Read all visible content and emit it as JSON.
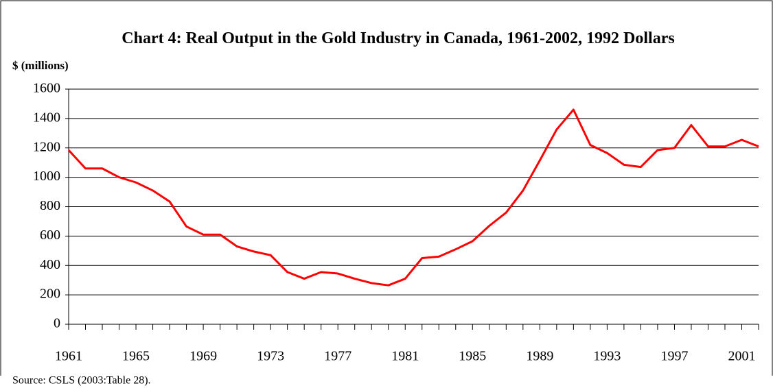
{
  "chart_data": {
    "type": "line",
    "title": "Chart 4: Real Output in the Gold Industry in Canada, 1961-2002, 1992 Dollars",
    "y_axis_label": "$ (millions)",
    "source": "Source: CSLS (2003:Table 28).",
    "x": [
      1961,
      1962,
      1963,
      1964,
      1965,
      1966,
      1967,
      1968,
      1969,
      1970,
      1971,
      1972,
      1973,
      1974,
      1975,
      1976,
      1977,
      1978,
      1979,
      1980,
      1981,
      1982,
      1983,
      1984,
      1985,
      1986,
      1987,
      1988,
      1989,
      1990,
      1991,
      1992,
      1993,
      1994,
      1995,
      1996,
      1997,
      1998,
      1999,
      2000,
      2001,
      2002
    ],
    "series": [
      {
        "color": "#ff0000",
        "values": [
          1185,
          1060,
          1060,
          1000,
          965,
          910,
          835,
          665,
          610,
          610,
          530,
          495,
          470,
          355,
          310,
          355,
          345,
          310,
          280,
          265,
          310,
          450,
          460,
          510,
          565,
          670,
          760,
          910,
          1115,
          1325,
          1460,
          1220,
          1165,
          1085,
          1070,
          1185,
          1200,
          1355,
          1210,
          1210,
          1255,
          1210
        ]
      }
    ],
    "xlim": [
      1961,
      2002
    ],
    "xticks": [
      1961,
      1965,
      1969,
      1973,
      1977,
      1981,
      1985,
      1989,
      1993,
      1997,
      2001
    ],
    "ylim": [
      0,
      1600
    ],
    "yticks": [
      0,
      200,
      400,
      600,
      800,
      1000,
      1200,
      1400,
      1600
    ],
    "grid": true
  }
}
